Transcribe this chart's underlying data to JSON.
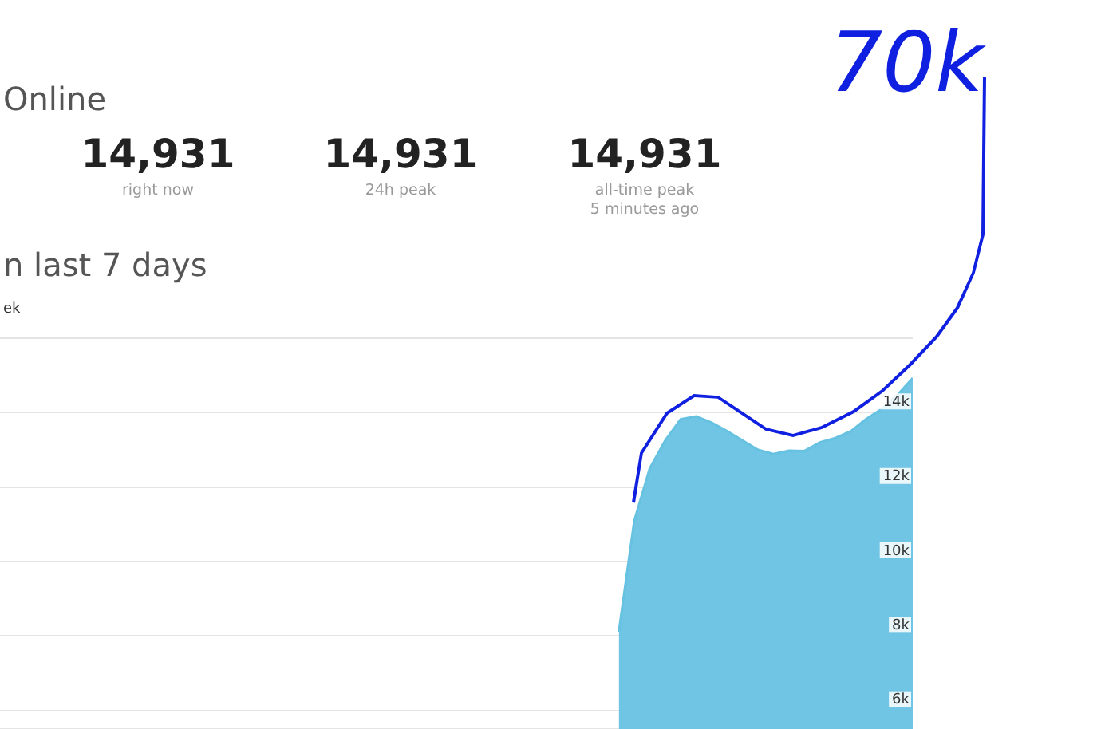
{
  "chart_data": {
    "type": "area",
    "title": "n last 7 days",
    "annotations": [
      "Online",
      "14,931",
      "right now",
      "14,931",
      "24h peak",
      "14,931",
      "all-time peak",
      "5 minutes ago",
      "ek",
      "70k"
    ],
    "categories": [
      null,
      null,
      null,
      null,
      null,
      null,
      null,
      null,
      null,
      null,
      null,
      null,
      null,
      null,
      null,
      null,
      null,
      null,
      null,
      null,
      null,
      null,
      null,
      null,
      null,
      null,
      null,
      null,
      null,
      null,
      null,
      null,
      null,
      null,
      null,
      null,
      null,
      null,
      null,
      null,
      null,
      null,
      null,
      null,
      null,
      null,
      null,
      null,
      null,
      null,
      null,
      null,
      null,
      null,
      null,
      null,
      null,
      null,
      null,
      null
    ],
    "series": [
      {
        "color": "#67c2e2",
        "values": [
          null,
          null,
          null,
          null,
          null,
          null,
          null,
          null,
          null,
          null,
          null,
          null,
          null,
          null,
          null,
          null,
          null,
          null,
          null,
          null,
          null,
          null,
          null,
          null,
          null,
          null,
          null,
          null,
          null,
          null,
          null,
          null,
          null,
          null,
          null,
          null,
          null,
          null,
          null,
          null,
          8100,
          11090,
          12500,
          13250,
          13820,
          13900,
          13730,
          13500,
          13250,
          13000,
          12890,
          12980,
          12970,
          13200,
          13320,
          13500,
          13830,
          14100,
          14470,
          14930
        ]
      }
    ],
    "ylim": [
      5500,
      16000
    ],
    "yticks": [
      {
        "value": 6000,
        "label": "6k"
      },
      {
        "value": 8000,
        "label": "8k"
      },
      {
        "value": 10000,
        "label": "10k"
      },
      {
        "value": 12000,
        "label": "12k"
      },
      {
        "value": 14000,
        "label": "14k"
      },
      {
        "value": 16000,
        "label": null
      }
    ],
    "grid": "y",
    "tick_labels": "y"
  }
}
